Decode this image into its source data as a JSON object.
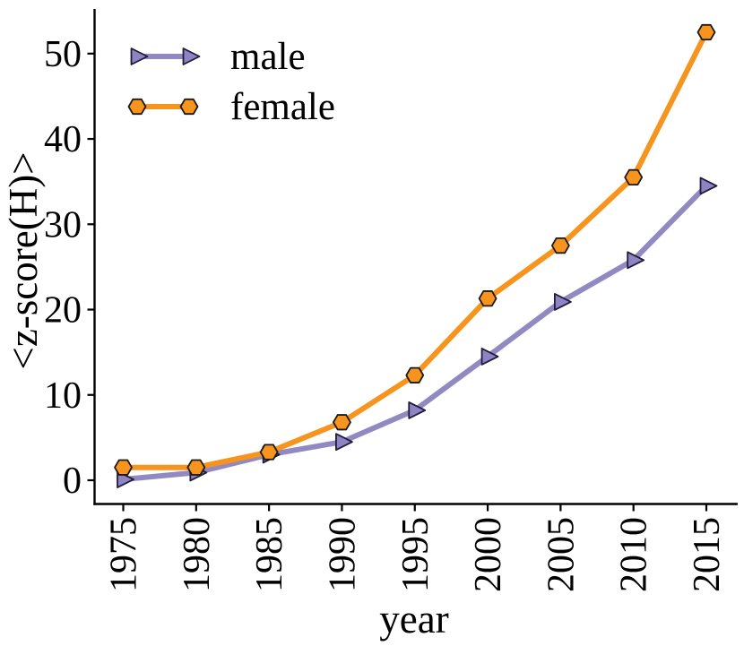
{
  "figure": {
    "background": "#ffffff"
  },
  "chart_data": {
    "type": "line",
    "title": "",
    "xlabel": "year",
    "ylabel": "<z-score(H)>",
    "x": [
      1975,
      1980,
      1985,
      1990,
      1995,
      2000,
      2005,
      2010,
      2015
    ],
    "xtick_labels": [
      "1975",
      "1980",
      "1985",
      "1990",
      "1995",
      "2000",
      "2005",
      "2010",
      "2015"
    ],
    "xtick_rotation": 90,
    "ytick_values": [
      0,
      10,
      20,
      30,
      40,
      50
    ],
    "ytick_labels": [
      "0",
      "10",
      "20",
      "30",
      "40",
      "50"
    ],
    "xlim": [
      1973.0,
      2017.1
    ],
    "ylim": [
      -2.8,
      55.5
    ],
    "grid": false,
    "spines": [
      "left",
      "bottom"
    ],
    "legend": {
      "position": "upper-left",
      "frame": false,
      "entries": [
        "male",
        "female"
      ]
    },
    "series": [
      {
        "name": "male",
        "color": "#9189C2",
        "marker": "triangle-right",
        "marker_fill": "#8E84C4",
        "marker_edge": "#221C38",
        "values": [
          0.1,
          0.9,
          3.0,
          4.5,
          8.2,
          14.5,
          20.9,
          25.8,
          34.5
        ]
      },
      {
        "name": "female",
        "color": "#F7941E",
        "marker": "hexagon",
        "marker_fill": "#F7941E",
        "marker_edge": "#1A1A1A",
        "values": [
          1.5,
          1.5,
          3.3,
          6.8,
          12.3,
          21.3,
          27.5,
          35.5,
          52.5
        ]
      }
    ],
    "axis_color": "#000000",
    "text_color": "#000000"
  }
}
